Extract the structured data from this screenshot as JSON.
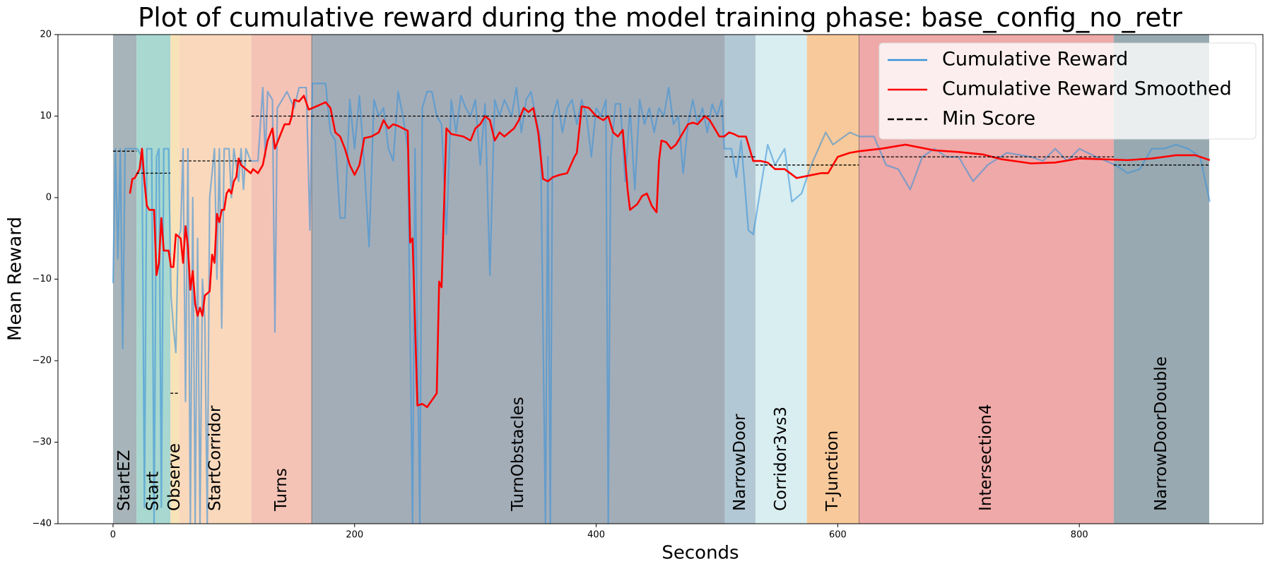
{
  "chart_data": {
    "type": "line",
    "title": "Plot of cumulative reward during the model training phase: base_config_no_retr",
    "x_label": "Seconds",
    "y_label": "Mean Reward",
    "xlim": [
      -45.6,
      952
    ],
    "ylim": [
      -40,
      20
    ],
    "xticks": [
      0,
      200,
      400,
      600,
      800
    ],
    "yticks": [
      {
        "value": -40,
        "label": "−40"
      },
      {
        "value": -30,
        "label": "−30"
      },
      {
        "value": -20,
        "label": "−20"
      },
      {
        "value": -10,
        "label": "−10"
      },
      0,
      10,
      20
    ],
    "grid": false,
    "legend": "upper right",
    "regions": [
      {
        "label": "StartEZ",
        "start": 0,
        "end": 19.5,
        "color": "#a7b4b9"
      },
      {
        "label": "Start",
        "start": 19.5,
        "end": 47.5,
        "color": "#a8d8d0"
      },
      {
        "label": "Observe",
        "start": 47.5,
        "end": 55,
        "color": "#f8e2b8"
      },
      {
        "label": "StartCorridor",
        "start": 55,
        "end": 114.5,
        "color": "#fad8bc"
      },
      {
        "label": "Turns",
        "start": 114.5,
        "end": 164.5,
        "color": "#f4c3b6"
      },
      {
        "label": "TurnObstacles",
        "start": 164.5,
        "end": 506.5,
        "color": "#a3adb8"
      },
      {
        "label": "NarrowDoor",
        "start": 506.5,
        "end": 532,
        "color": "#b2c8d4"
      },
      {
        "label": "Corridor3vs3",
        "start": 532,
        "end": 574.5,
        "color": "#d9eef0"
      },
      {
        "label": "T-Junction",
        "start": 574.5,
        "end": 617.5,
        "color": "#f8c99a"
      },
      {
        "label": "Intersection4",
        "start": 617.5,
        "end": 828.5,
        "color": "#eea9a8"
      },
      {
        "label": "NarrowDoorDouble",
        "start": 828.5,
        "end": 907.5,
        "color": "#98a9b1"
      }
    ],
    "min_score": {
      "name": "Min Score",
      "color": "#000000",
      "values": [
        5.7,
        3,
        -24,
        4.5,
        10,
        10,
        5,
        4,
        4,
        5,
        4
      ]
    },
    "series": [
      {
        "name": "Cumulative Reward",
        "color": "#3a93d8",
        "x": [
          0,
          2,
          4,
          6,
          8,
          10,
          15,
          20,
          24,
          26,
          28,
          32,
          34,
          36,
          38,
          40,
          42,
          46,
          48,
          50,
          52,
          54,
          56,
          58,
          60,
          62,
          64,
          66,
          68,
          70,
          72,
          74,
          76,
          78,
          80,
          84,
          86,
          88,
          90,
          92,
          96,
          98,
          100,
          104,
          106,
          108,
          110,
          114,
          120,
          124,
          126,
          128,
          132,
          134,
          136,
          140,
          144,
          150,
          154,
          160,
          163,
          165,
          176,
          180,
          184,
          188,
          192,
          196,
          200,
          204,
          208,
          212,
          216,
          220,
          224,
          228,
          232,
          236,
          240,
          244,
          248,
          250,
          254,
          256,
          260,
          264,
          268,
          272,
          276,
          280,
          284,
          288,
          292,
          296,
          300,
          304,
          308,
          312,
          316,
          320,
          324,
          330,
          334,
          338,
          342,
          346,
          350,
          354,
          358,
          360,
          362,
          364,
          368,
          372,
          376,
          380,
          384,
          388,
          392,
          396,
          400,
          404,
          408,
          410,
          412,
          416,
          420,
          424,
          428,
          432,
          436,
          440,
          444,
          448,
          452,
          456,
          460,
          464,
          468,
          472,
          476,
          480,
          484,
          488,
          492,
          496,
          500,
          504,
          506,
          512,
          516,
          520,
          526,
          530,
          536,
          542,
          548,
          556,
          562,
          570,
          578,
          590,
          596,
          610,
          618,
          630,
          640,
          650,
          660,
          670,
          680,
          690,
          700,
          712,
          724,
          740,
          760,
          770,
          780,
          790,
          800,
          814,
          830,
          840,
          850,
          860,
          870,
          880,
          890,
          900,
          908
        ],
        "y": [
          -10.5,
          6,
          -7.5,
          6,
          -18.5,
          6,
          6,
          6,
          5,
          -38,
          6,
          6,
          -40,
          5,
          6,
          -38,
          6,
          6,
          -12,
          -16,
          -19,
          -5,
          -4,
          6,
          -25,
          6,
          -40,
          0,
          -40,
          -5,
          -40,
          -10,
          -15,
          -40,
          0,
          6,
          -10,
          6,
          -16,
          6,
          6,
          0,
          6,
          2,
          6,
          1,
          6,
          4.5,
          4.5,
          13.5,
          5,
          13,
          12,
          -16.5,
          11,
          12,
          13,
          11,
          13.5,
          13.5,
          -4,
          14,
          14,
          8,
          7,
          -2.5,
          -2.5,
          12,
          6,
          12.5,
          4,
          -6,
          12,
          10,
          11,
          6,
          4.5,
          13,
          10,
          6,
          -40,
          6,
          -40,
          11,
          13,
          13,
          10,
          9,
          -4.5,
          12,
          8,
          12.5,
          11,
          10,
          12,
          4,
          11.5,
          -9.5,
          12,
          10,
          12,
          10,
          13.5,
          8,
          12,
          13,
          10,
          7,
          -40,
          5,
          -40,
          10,
          12,
          8,
          11,
          12,
          9,
          12,
          10,
          5,
          11,
          10,
          12,
          -40,
          5,
          11.5,
          11.5,
          2,
          11,
          1,
          12,
          9,
          11,
          8,
          11,
          10,
          13.5,
          9,
          10,
          3,
          9,
          12,
          9,
          11,
          8,
          11.5,
          10,
          12,
          6,
          6,
          2.5,
          7,
          -4,
          -4.5,
          1,
          6.5,
          4,
          6,
          -0.5,
          0.5,
          4,
          8,
          6.5,
          8,
          7.5,
          7.5,
          4,
          3.5,
          1,
          5,
          6,
          5,
          5,
          2,
          4,
          5.5,
          5,
          4.5,
          6,
          4.5,
          6,
          5,
          4,
          3,
          3.5,
          6,
          6,
          6.5,
          6,
          5,
          -0.5
        ]
      },
      {
        "name": "Cumulative Reward Smoothed",
        "color": "#ff0000",
        "x": [
          14,
          16,
          18,
          22,
          24,
          26,
          28,
          30,
          34,
          36,
          38,
          40,
          42,
          46,
          48,
          50,
          52,
          56,
          58,
          60,
          62,
          64,
          66,
          68,
          70,
          72,
          74,
          76,
          80,
          82,
          84,
          86,
          88,
          90,
          92,
          94,
          96,
          98,
          100,
          102,
          104,
          106,
          110,
          114,
          116,
          120,
          124,
          128,
          132,
          134,
          138,
          142,
          146,
          148,
          150,
          154,
          158,
          162,
          170,
          176,
          180,
          184,
          188,
          192,
          196,
          200,
          204,
          208,
          214,
          220,
          224,
          228,
          232,
          236,
          240,
          244,
          246,
          248,
          252,
          256,
          260,
          268,
          270,
          272,
          276,
          280,
          290,
          296,
          300,
          304,
          308,
          312,
          316,
          320,
          324,
          328,
          332,
          336,
          340,
          344,
          348,
          352,
          356,
          360,
          364,
          370,
          376,
          382,
          384,
          388,
          394,
          400,
          406,
          410,
          414,
          418,
          422,
          426,
          428,
          434,
          438,
          442,
          446,
          450,
          452,
          454,
          458,
          462,
          466,
          472,
          476,
          480,
          484,
          490,
          494,
          498,
          502,
          506,
          510,
          514,
          518,
          524,
          530,
          536,
          542,
          548,
          556,
          566,
          576,
          586,
          592,
          600,
          610,
          618,
          636,
          656,
          680,
          700,
          720,
          736,
          760,
          780,
          800,
          820,
          840,
          860,
          880,
          896,
          908
        ],
        "y": [
          0.5,
          2.3,
          2.4,
          3.5,
          6,
          2,
          -1,
          -1.5,
          -1.5,
          -9.5,
          -8,
          -2.5,
          -6.5,
          -6.5,
          -8.5,
          -8.5,
          -4.5,
          -5,
          -8,
          -3.5,
          -6,
          -11.3,
          -9,
          -13,
          -14.5,
          -13.5,
          -14.5,
          -12,
          -11.5,
          -7,
          -8,
          -2,
          -3,
          -1.5,
          -1.5,
          0.5,
          1,
          0.5,
          2,
          2.5,
          4.8,
          4,
          3.5,
          3,
          3.5,
          3,
          4,
          7,
          8.5,
          6,
          7.5,
          9,
          9,
          10,
          12,
          11.8,
          12.5,
          10.8,
          11.3,
          11.7,
          11,
          8,
          7.5,
          6,
          4,
          2.8,
          4,
          7.3,
          7.5,
          8,
          9.5,
          8.5,
          9,
          8.8,
          8.5,
          8.2,
          -5.5,
          -5,
          -25.5,
          -25.3,
          -25.7,
          -24,
          -10.3,
          -11,
          8.5,
          7.8,
          7.5,
          7,
          8.5,
          9,
          10,
          9.5,
          7,
          8,
          7.5,
          8,
          8.5,
          9.5,
          11,
          10.5,
          11,
          8,
          2.3,
          2,
          2.5,
          2.8,
          3,
          5,
          5.5,
          11.2,
          11,
          10,
          9.5,
          10,
          8,
          7.5,
          8.3,
          1,
          -1.5,
          -0.8,
          0.2,
          0.5,
          -1,
          -1.8,
          4.5,
          7,
          6.8,
          6,
          6.5,
          8,
          9,
          9.2,
          9,
          10,
          9.5,
          8.5,
          7.5,
          7.5,
          8,
          7.8,
          7.5,
          7.5,
          4.5,
          4.5,
          4.3,
          3.5,
          3.5,
          2.4,
          2.7,
          3,
          3,
          5,
          5.5,
          5.7,
          6,
          6.5,
          5.8,
          5.6,
          5.3,
          4.7,
          4.2,
          4.3,
          4.8,
          4.7,
          4.6,
          4.8,
          5.2,
          5.2,
          4.6
        ]
      }
    ]
  }
}
